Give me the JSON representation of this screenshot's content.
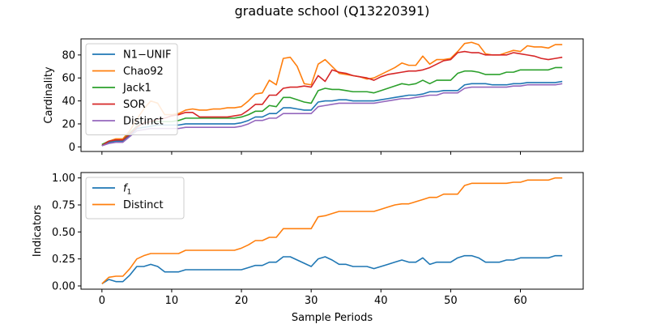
{
  "title": "graduate school (Q13220391)",
  "chart_data": [
    {
      "type": "line",
      "ylabel": "Cardinality",
      "xlabel": "",
      "xlim": [
        -3,
        69
      ],
      "ylim": [
        -4,
        94
      ],
      "xticks": [
        0,
        10,
        20,
        30,
        40,
        50,
        60
      ],
      "yticks": [
        0,
        20,
        40,
        60,
        80
      ],
      "ytick_labels": [
        "0",
        "20",
        "40",
        "60",
        "80"
      ],
      "show_xtick_labels": false,
      "legend_loc": "upper left",
      "x_start": 0,
      "series": [
        {
          "name": "N1−UNIF",
          "color": "#1f77b4",
          "values": [
            1,
            4,
            5,
            5,
            10,
            16,
            17,
            18,
            19,
            19,
            19,
            19,
            20,
            20,
            20,
            20,
            20,
            20,
            20,
            20,
            21,
            23,
            26,
            26,
            29,
            29,
            34,
            34,
            33,
            32,
            32,
            39,
            40,
            40,
            41,
            41,
            40,
            40,
            40,
            40,
            41,
            42,
            43,
            44,
            45,
            45,
            46,
            48,
            48,
            49,
            49,
            49,
            54,
            55,
            55,
            55,
            54,
            54,
            54,
            55,
            55,
            56,
            56,
            56,
            56,
            56,
            57
          ]
        },
        {
          "name": "Chao92",
          "color": "#ff7f0e",
          "values": [
            2,
            5,
            7,
            7,
            14,
            24,
            33,
            40,
            38,
            28,
            28,
            29,
            32,
            33,
            32,
            32,
            33,
            33,
            34,
            34,
            35,
            40,
            46,
            47,
            58,
            54,
            77,
            78,
            70,
            55,
            54,
            72,
            76,
            70,
            64,
            63,
            62,
            61,
            59,
            60,
            63,
            66,
            69,
            73,
            71,
            71,
            79,
            72,
            76,
            76,
            77,
            83,
            90,
            91,
            89,
            81,
            80,
            80,
            82,
            84,
            83,
            88,
            87,
            87,
            86,
            89,
            89
          ]
        },
        {
          "name": "Jack1",
          "color": "#2ca02c",
          "values": [
            2,
            5,
            6,
            6,
            12,
            18,
            21,
            22,
            22,
            22,
            22,
            23,
            25,
            25,
            25,
            25,
            25,
            25,
            25,
            25,
            26,
            28,
            31,
            31,
            36,
            35,
            43,
            43,
            41,
            39,
            38,
            49,
            51,
            50,
            50,
            49,
            48,
            48,
            48,
            47,
            49,
            51,
            53,
            55,
            54,
            55,
            58,
            55,
            58,
            58,
            58,
            64,
            66,
            66,
            65,
            63,
            63,
            63,
            65,
            65,
            67,
            67,
            67,
            67,
            67,
            69,
            69
          ]
        },
        {
          "name": "SOR",
          "color": "#d62728",
          "values": [
            1,
            5,
            6,
            6,
            11,
            17,
            21,
            22,
            24,
            25,
            27,
            28,
            30,
            30,
            26,
            26,
            26,
            26,
            26,
            27,
            28,
            32,
            37,
            37,
            45,
            45,
            51,
            52,
            52,
            53,
            52,
            62,
            57,
            67,
            65,
            64,
            62,
            61,
            60,
            58,
            61,
            63,
            64,
            65,
            66,
            66,
            67,
            69,
            72,
            75,
            76,
            82,
            83,
            82,
            82,
            80,
            80,
            80,
            80,
            82,
            81,
            80,
            79,
            77,
            76,
            77,
            78
          ]
        },
        {
          "name": "Distinct",
          "color": "#9467bd",
          "values": [
            1,
            3,
            4,
            4,
            9,
            14,
            15,
            16,
            16,
            16,
            16,
            16,
            17,
            17,
            17,
            17,
            17,
            17,
            17,
            17,
            18,
            20,
            23,
            23,
            25,
            25,
            29,
            29,
            29,
            29,
            29,
            35,
            36,
            37,
            38,
            38,
            38,
            38,
            38,
            38,
            39,
            40,
            41,
            42,
            42,
            43,
            44,
            45,
            45,
            47,
            47,
            47,
            51,
            52,
            52,
            52,
            52,
            52,
            52,
            53,
            53,
            54,
            54,
            54,
            54,
            54,
            55
          ]
        }
      ]
    },
    {
      "type": "line",
      "ylabel": "Indicators",
      "xlabel": "Sample Periods",
      "xlim": [
        -3,
        69
      ],
      "ylim": [
        -0.03,
        1.05
      ],
      "xticks": [
        0,
        10,
        20,
        30,
        40,
        50,
        60
      ],
      "xtick_labels": [
        "0",
        "10",
        "20",
        "30",
        "40",
        "50",
        "60"
      ],
      "yticks": [
        0,
        0.25,
        0.5,
        0.75,
        1.0
      ],
      "ytick_labels": [
        "0.00",
        "0.25",
        "0.50",
        "0.75",
        "1.00"
      ],
      "legend_loc": "upper left",
      "x_start": 0,
      "series": [
        {
          "name": "f1",
          "legend_label": "f",
          "legend_sub": "1",
          "color": "#1f77b4",
          "values": [
            0.02,
            0.06,
            0.04,
            0.04,
            0.1,
            0.18,
            0.18,
            0.2,
            0.18,
            0.13,
            0.13,
            0.13,
            0.15,
            0.15,
            0.15,
            0.15,
            0.15,
            0.15,
            0.15,
            0.15,
            0.15,
            0.17,
            0.19,
            0.19,
            0.22,
            0.22,
            0.27,
            0.27,
            0.24,
            0.21,
            0.18,
            0.25,
            0.27,
            0.24,
            0.2,
            0.2,
            0.18,
            0.18,
            0.18,
            0.16,
            0.18,
            0.2,
            0.22,
            0.24,
            0.22,
            0.22,
            0.26,
            0.2,
            0.22,
            0.22,
            0.22,
            0.26,
            0.28,
            0.28,
            0.26,
            0.22,
            0.22,
            0.22,
            0.24,
            0.24,
            0.26,
            0.26,
            0.26,
            0.26,
            0.26,
            0.28,
            0.28
          ]
        },
        {
          "name": "Distinct",
          "legend_label": "Distinct",
          "color": "#ff7f0e",
          "values": [
            0.02,
            0.08,
            0.09,
            0.09,
            0.16,
            0.25,
            0.28,
            0.3,
            0.3,
            0.3,
            0.3,
            0.3,
            0.33,
            0.33,
            0.33,
            0.33,
            0.33,
            0.33,
            0.33,
            0.33,
            0.35,
            0.38,
            0.42,
            0.42,
            0.45,
            0.45,
            0.53,
            0.53,
            0.53,
            0.53,
            0.53,
            0.64,
            0.65,
            0.67,
            0.69,
            0.69,
            0.69,
            0.69,
            0.69,
            0.69,
            0.71,
            0.73,
            0.75,
            0.76,
            0.76,
            0.78,
            0.8,
            0.82,
            0.82,
            0.85,
            0.85,
            0.85,
            0.93,
            0.95,
            0.95,
            0.95,
            0.95,
            0.95,
            0.95,
            0.96,
            0.96,
            0.98,
            0.98,
            0.98,
            0.98,
            1.0,
            1.0
          ]
        }
      ]
    }
  ]
}
